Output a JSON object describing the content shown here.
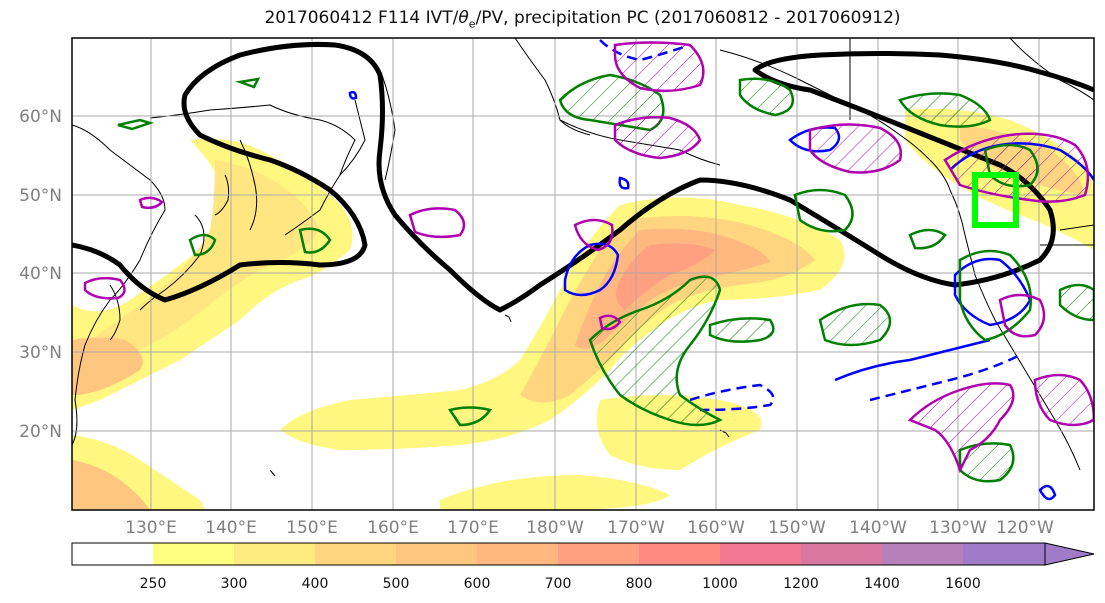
{
  "title": "2017060412 F114 IVT/θe/PV, precipitation PC (2017060812 - 2017060912)",
  "title_parts": {
    "prefix": "2017060412 F114 IVT/",
    "theta": "θ",
    "theta_sub": "e",
    "suffix": "/PV, precipitation PC (2017060812 - 2017060912)"
  },
  "lat_labels": [
    "60°N",
    "50°N",
    "40°N",
    "30°N",
    "20°N"
  ],
  "lon_labels": [
    "130°E",
    "140°E",
    "150°E",
    "160°E",
    "170°E",
    "180°W",
    "170°W",
    "160°W",
    "150°W",
    "140°W",
    "130°W",
    "120°W"
  ],
  "colorbar": {
    "labels": [
      "250",
      "300",
      "400",
      "500",
      "600",
      "700",
      "800",
      "1000",
      "1200",
      "1400",
      "1600"
    ],
    "colors": [
      "#ffff80",
      "#ffec80",
      "#ffd580",
      "#ffc680",
      "#ffb880",
      "#ffa080",
      "#ff8a80",
      "#f07890",
      "#d878a0",
      "#b880b8",
      "#a07cc8"
    ]
  },
  "colors": {
    "theta_e_contour": "#000000",
    "pv_contour": "#0000ff",
    "precip_pc_positive": "#008000",
    "precip_pc_negative": "#b000b0",
    "target_box": "#00ff00",
    "coastline": "#000000",
    "grid": "#aaaaaa"
  }
}
